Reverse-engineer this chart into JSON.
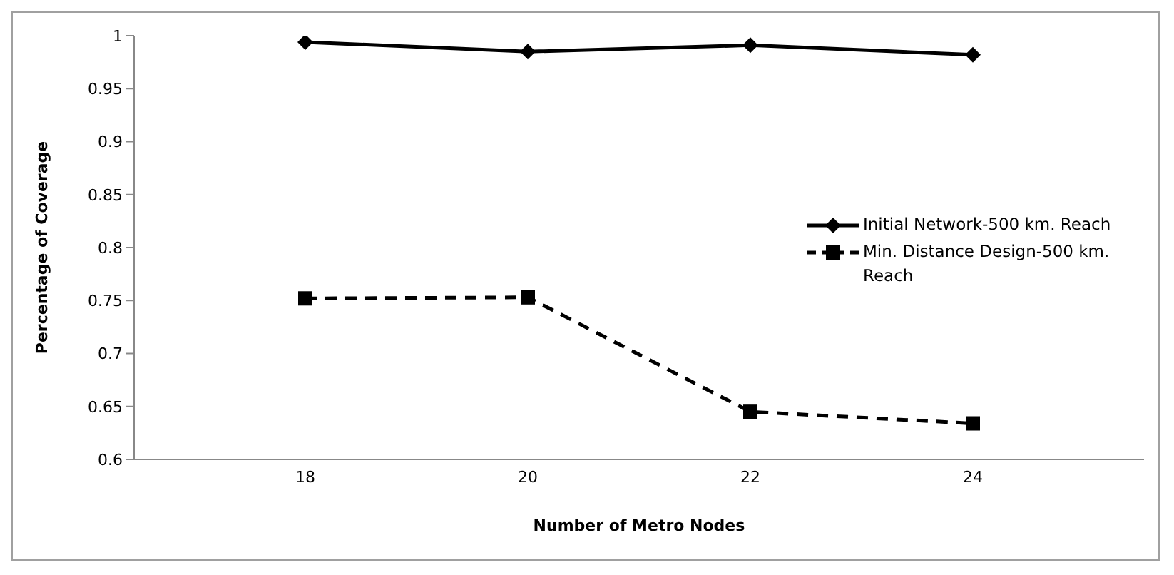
{
  "chart_data": {
    "type": "line",
    "xlabel": "Number of Metro Nodes",
    "ylabel": "Percentage of Coverage",
    "categories": [
      "18",
      "20",
      "22",
      "24"
    ],
    "series": [
      {
        "name": "Initial Network-500 km. Reach",
        "color": "#000000",
        "values": [
          0.994,
          0.985,
          0.991,
          0.982
        ],
        "marker": "diamond",
        "line_style": "solid"
      },
      {
        "name": "Min. Distance Design-500 km. Reach",
        "color": "#000000",
        "values": [
          0.752,
          0.753,
          0.645,
          0.634
        ],
        "marker": "square",
        "line_style": "dashed"
      }
    ],
    "ylim": [
      0.6,
      1
    ],
    "yticks": [
      0.6,
      0.65,
      0.7,
      0.75,
      0.8,
      0.85,
      0.9,
      0.95,
      1
    ],
    "grid": false,
    "legend": "right"
  }
}
